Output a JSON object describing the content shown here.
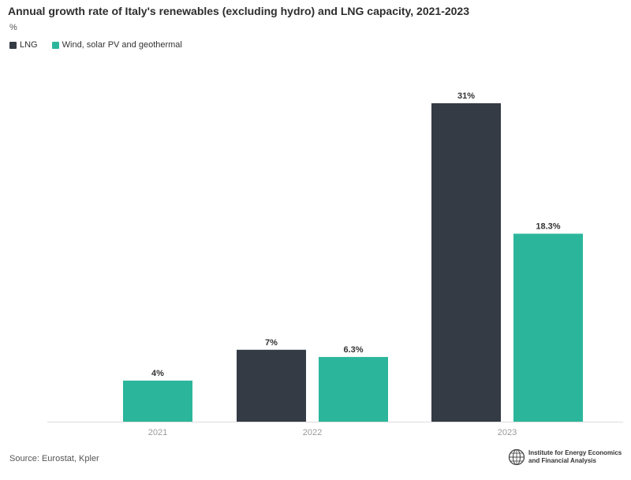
{
  "header": {
    "title": "Annual growth rate of Italy's renewables (excluding hydro) and LNG capacity, 2021-2023",
    "unit": "%"
  },
  "colors": {
    "lng": "#343b45",
    "renewables": "#2bb69b",
    "tick_text": "#999999",
    "label_text": "#333333",
    "baseline": "#dddddd"
  },
  "chart_data": {
    "type": "bar",
    "categories": [
      "2021",
      "2022",
      "2023"
    ],
    "series": [
      {
        "name": "LNG",
        "values": [
          null,
          7,
          31
        ],
        "labels": [
          "",
          "7%",
          "31%"
        ]
      },
      {
        "name": "Wind, solar PV and geothermal",
        "values": [
          4,
          6.3,
          18.3
        ],
        "labels": [
          "4%",
          "6.3%",
          "18.3%"
        ]
      }
    ],
    "ylabel": "%",
    "ylim": [
      0,
      31
    ],
    "grid": false,
    "legend_position": "top-left"
  },
  "footer": {
    "source": "Source: Eurostat, Kpler",
    "logo_line1": "Institute for Energy Economics",
    "logo_line2": "and Financial Analysis",
    "logo_icon": "globe-icon"
  }
}
